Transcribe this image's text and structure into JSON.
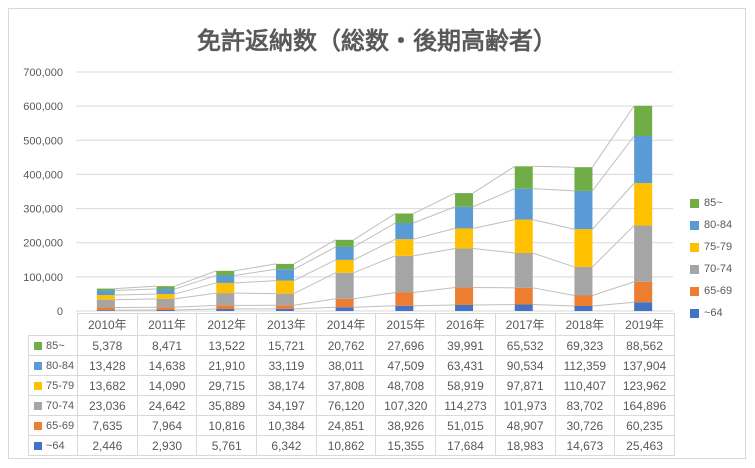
{
  "title": "免許返納数（総数・後期高齢者）",
  "chart_data": {
    "type": "bar",
    "stacked": true,
    "title": "免許返納数（総数・後期高齢者）",
    "categories": [
      "2010年",
      "2011年",
      "2012年",
      "2013年",
      "2014年",
      "2015年",
      "2016年",
      "2017年",
      "2018年",
      "2019年"
    ],
    "series": [
      {
        "name": "85~",
        "color": "#70AD47",
        "values": [
          5378,
          8471,
          13522,
          15721,
          20762,
          27696,
          39991,
          65532,
          69323,
          88562
        ],
        "formatted": [
          "5,378",
          "8,471",
          "13,522",
          "15,721",
          "20,762",
          "27,696",
          "39,991",
          "65,532",
          "69,323",
          "88,562"
        ]
      },
      {
        "name": "80-84",
        "color": "#5B9BD5",
        "values": [
          13428,
          14638,
          21910,
          33119,
          38011,
          47509,
          63431,
          90534,
          112359,
          137904
        ],
        "formatted": [
          "13,428",
          "14,638",
          "21,910",
          "33,119",
          "38,011",
          "47,509",
          "63,431",
          "90,534",
          "112,359",
          "137,904"
        ]
      },
      {
        "name": "75-79",
        "color": "#FFC000",
        "values": [
          13682,
          14090,
          29715,
          38174,
          37808,
          48708,
          58919,
          97871,
          110407,
          123962
        ],
        "formatted": [
          "13,682",
          "14,090",
          "29,715",
          "38,174",
          "37,808",
          "48,708",
          "58,919",
          "97,871",
          "110,407",
          "123,962"
        ]
      },
      {
        "name": "70-74",
        "color": "#A5A5A5",
        "values": [
          23036,
          24642,
          35889,
          34197,
          76120,
          107320,
          114273,
          101973,
          83702,
          164896
        ],
        "formatted": [
          "23,036",
          "24,642",
          "35,889",
          "34,197",
          "76,120",
          "107,320",
          "114,273",
          "101,973",
          "83,702",
          "164,896"
        ]
      },
      {
        "name": "65-69",
        "color": "#ED7D31",
        "values": [
          7635,
          7964,
          10816,
          10384,
          24851,
          38926,
          51015,
          48907,
          30726,
          60235
        ],
        "formatted": [
          "7,635",
          "7,964",
          "10,816",
          "10,384",
          "24,851",
          "38,926",
          "51,015",
          "48,907",
          "30,726",
          "60,235"
        ]
      },
      {
        "name": "~64",
        "color": "#4472C4",
        "values": [
          2446,
          2930,
          5761,
          6342,
          10862,
          15355,
          17684,
          18983,
          14673,
          25463
        ],
        "formatted": [
          "2,446",
          "2,930",
          "5,761",
          "6,342",
          "10,862",
          "15,355",
          "17,684",
          "18,983",
          "14,673",
          "25,463"
        ]
      }
    ],
    "stack_order_bottom_to_top": [
      "~64",
      "65-69",
      "70-74",
      "75-79",
      "80-84",
      "85~"
    ],
    "legend": [
      "85~",
      "80-84",
      "75-79",
      "70-74",
      "65-69",
      "~64"
    ],
    "y_axis": {
      "ticks": [
        "0",
        "100,000",
        "200,000",
        "300,000",
        "400,000",
        "500,000",
        "600,000",
        "700,000"
      ],
      "min": 0,
      "max": 700000
    },
    "ylim": [
      0,
      700000
    ],
    "xlabel": "",
    "ylabel": "",
    "legend_position": "right",
    "grid": true,
    "series_lines": true,
    "data_table": true,
    "style": {
      "axis_text_color": "#595959",
      "title_color": "#595959",
      "grid_color": "#D9D9D9",
      "series_line_color": "#BFBFBF",
      "table_border_color": "#D9D9D9",
      "frame_border_color": "#D9D9D9",
      "background": "#FFFFFF"
    }
  }
}
